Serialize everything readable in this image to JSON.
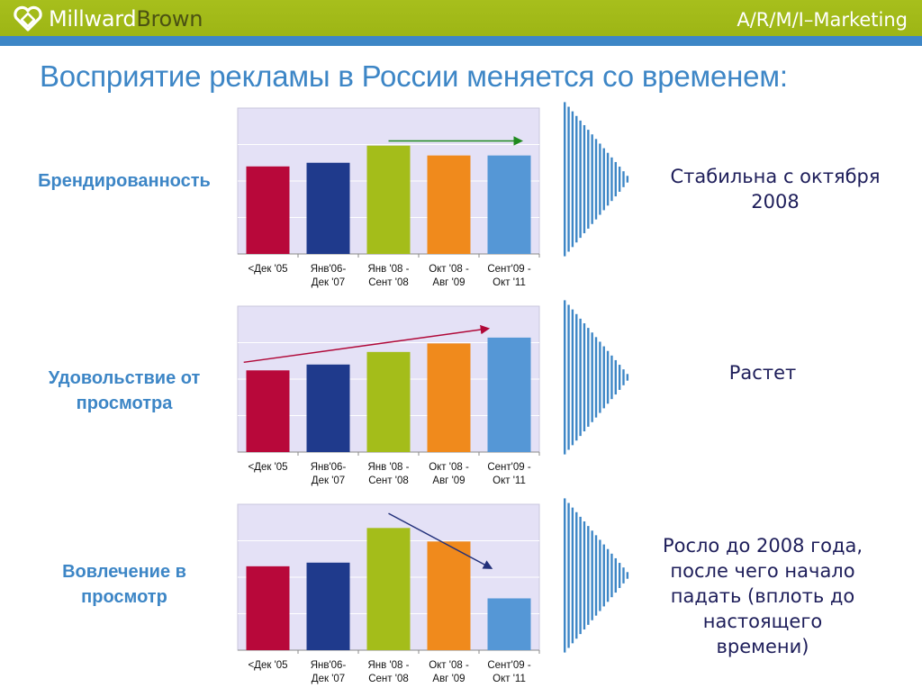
{
  "header": {
    "logo_part1": "Millward",
    "logo_part2": "Brown",
    "brand_right": "A/R/M/I–Marketing",
    "colors": {
      "bar": "#a4bd1a",
      "band": "#3d86c6",
      "accent_dark": "#4b5213"
    }
  },
  "slide": {
    "title": "Восприятие рекламы в России меняется со временем:"
  },
  "rows": [
    {
      "label_lines": [
        "Брендированность"
      ],
      "comment_lines": [
        "Стабильна с октября",
        "2008"
      ]
    },
    {
      "label_lines": [
        "Удовольствие от",
        "просмотра"
      ],
      "comment_lines": [
        "Растет"
      ]
    },
    {
      "label_lines": [
        "Вовлечение в",
        "просмотр"
      ],
      "comment_lines": [
        "Росло до 2008 года,",
        "после чего начало",
        "падать (вплоть до",
        "настоящего",
        "времени)"
      ]
    }
  ],
  "chart_data": [
    {
      "type": "bar",
      "categories": [
        [
          "<Дек '05"
        ],
        [
          "Янв'06-",
          "Дек '07"
        ],
        [
          "Янв '08 -",
          "Сент '08"
        ],
        [
          "Окт '08 -",
          "Авг '09"
        ],
        [
          "Сент'09 -",
          "Окт '11"
        ]
      ],
      "values": [
        2.4,
        2.5,
        2.97,
        2.7,
        2.7
      ],
      "ylim": [
        0,
        4
      ],
      "grid": true,
      "colors": [
        "#b8083a",
        "#1f3a8c",
        "#a4bd1a",
        "#f08a1c",
        "#5597d6"
      ],
      "plot_background": "#e4e1f6",
      "trend_arrow": {
        "from": [
          3,
          3.1
        ],
        "to": [
          5.2,
          3.1
        ],
        "color": "#1f8a1f"
      }
    },
    {
      "type": "bar",
      "categories": [
        [
          "<Дек '05"
        ],
        [
          "Янв'06-",
          "Дек '07"
        ],
        [
          "Янв '08 -",
          "Сент '08"
        ],
        [
          "Окт '08 -",
          "Авг '09"
        ],
        [
          "Сент'09 -",
          "Окт '11"
        ]
      ],
      "values": [
        1.82,
        1.95,
        2.23,
        2.42,
        2.55
      ],
      "ylim": [
        0,
        3.25
      ],
      "grid": true,
      "colors": [
        "#b8083a",
        "#1f3a8c",
        "#a4bd1a",
        "#f08a1c",
        "#5597d6"
      ],
      "plot_background": "#e4e1f6",
      "trend_arrow": {
        "from": [
          0.6,
          2.0
        ],
        "to": [
          4.65,
          2.75
        ],
        "color": "#b00838"
      }
    },
    {
      "type": "bar",
      "categories": [
        [
          "<Дек '05"
        ],
        [
          "Янв'06-",
          "Дек '07"
        ],
        [
          "Янв '08 -",
          "Сент '08"
        ],
        [
          "Окт '08 -",
          "Авг '09"
        ],
        [
          "Сент'09 -",
          "Окт '11"
        ]
      ],
      "values": [
        2.3,
        2.4,
        3.35,
        2.98,
        1.42
      ],
      "ylim": [
        0,
        4
      ],
      "grid": true,
      "colors": [
        "#b8083a",
        "#1f3a8c",
        "#a4bd1a",
        "#f08a1c",
        "#5597d6"
      ],
      "plot_background": "#e4e1f6",
      "trend_arrow": {
        "from": [
          3.0,
          3.75
        ],
        "to": [
          4.7,
          2.25
        ],
        "color": "#22307a"
      }
    }
  ]
}
